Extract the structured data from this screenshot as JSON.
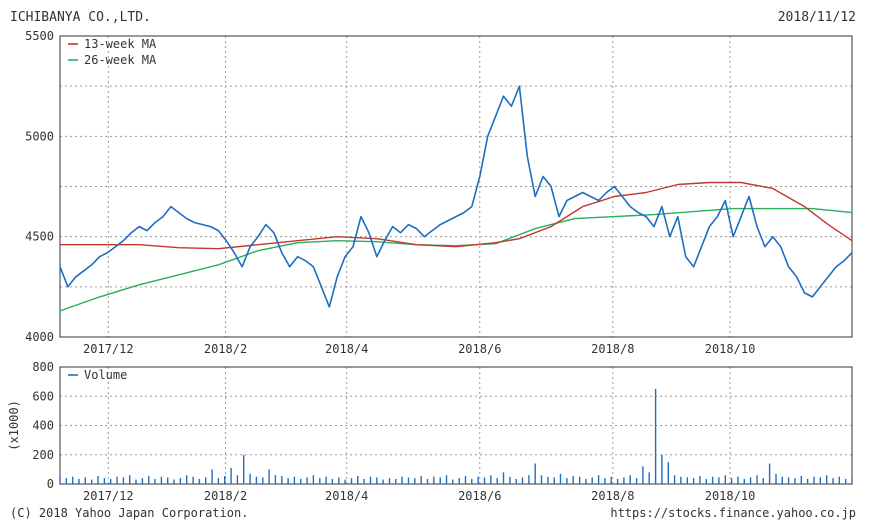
{
  "header": {
    "company": "ICHIBANYA CO.,LTD.",
    "date": "2018/11/12"
  },
  "footer": {
    "copyright": "(C) 2018 Yahoo Japan Corporation.",
    "url": "https://stocks.finance.yahoo.co.jp"
  },
  "colors": {
    "price": "#1f6fc0",
    "ma13": "#c0392b",
    "ma26": "#27ae60",
    "volume": "#1f6fc0",
    "grid": "#9a9a9a",
    "frame": "#333333"
  },
  "chart_data": [
    {
      "type": "line",
      "ylim": [
        4000,
        5500
      ],
      "yticks": [
        "5500",
        "5000",
        "4500",
        "4000"
      ],
      "x_tick_labels": [
        "2017/12",
        "2018/2",
        "2018/4",
        "2018/6",
        "2018/8",
        "2018/10"
      ],
      "grid": true,
      "legend_position": "top-left",
      "x_range": [
        0,
        100
      ],
      "x_ticks": [
        6.1,
        20.9,
        36.2,
        53.0,
        69.8,
        84.6
      ],
      "series": [
        {
          "name": "13-week MA",
          "key": "ma13",
          "x": [
            0,
            5,
            10,
            15,
            20,
            25,
            30,
            35,
            40,
            45,
            50,
            55,
            58,
            62,
            66,
            70,
            74,
            78,
            82,
            86,
            90,
            94,
            97,
            100
          ],
          "y": [
            4460,
            4460,
            4460,
            4445,
            4440,
            4460,
            4480,
            4500,
            4490,
            4460,
            4450,
            4470,
            4490,
            4550,
            4650,
            4700,
            4720,
            4760,
            4770,
            4770,
            4740,
            4650,
            4560,
            4480
          ]
        },
        {
          "name": "26-week MA",
          "key": "ma26",
          "x": [
            0,
            5,
            10,
            15,
            20,
            25,
            30,
            35,
            40,
            45,
            50,
            55,
            60,
            65,
            70,
            75,
            80,
            85,
            90,
            95,
            100
          ],
          "y": [
            4130,
            4200,
            4260,
            4310,
            4360,
            4430,
            4470,
            4480,
            4475,
            4460,
            4455,
            4465,
            4540,
            4590,
            4600,
            4610,
            4625,
            4640,
            4640,
            4640,
            4620
          ]
        },
        {
          "key": "price",
          "x": [
            0,
            1,
            2,
            3,
            4,
            5,
            6,
            7,
            8,
            9,
            10,
            11,
            12,
            13,
            14,
            15,
            16,
            17,
            18,
            19,
            20,
            21,
            22,
            23,
            24,
            25,
            26,
            27,
            28,
            29,
            30,
            31,
            32,
            33,
            34,
            35,
            36,
            37,
            38,
            39,
            40,
            41,
            42,
            43,
            44,
            45,
            46,
            47,
            48,
            49,
            50,
            51,
            52,
            53,
            54,
            55,
            56,
            57,
            58,
            59,
            60,
            61,
            62,
            63,
            64,
            65,
            66,
            67,
            68,
            69,
            70,
            71,
            72,
            73,
            74,
            75,
            76,
            77,
            78,
            79,
            80,
            81,
            82,
            83,
            84,
            85,
            86,
            87,
            88,
            89,
            90,
            91,
            92,
            93,
            94,
            95,
            96,
            97,
            98,
            99,
            100
          ],
          "y": [
            4350,
            4250,
            4300,
            4330,
            4360,
            4400,
            4420,
            4450,
            4480,
            4520,
            4550,
            4530,
            4570,
            4600,
            4650,
            4620,
            4590,
            4570,
            4560,
            4550,
            4530,
            4480,
            4420,
            4350,
            4450,
            4500,
            4560,
            4520,
            4420,
            4350,
            4400,
            4380,
            4350,
            4250,
            4150,
            4300,
            4400,
            4450,
            4600,
            4520,
            4400,
            4480,
            4550,
            4520,
            4560,
            4540,
            4500,
            4530,
            4560,
            4580,
            4600,
            4620,
            4650,
            4800,
            5000,
            5100,
            5200,
            5150,
            5250,
            4900,
            4700,
            4800,
            4750,
            4600,
            4680,
            4700,
            4720,
            4700,
            4680,
            4720,
            4750,
            4700,
            4650,
            4620,
            4600,
            4550,
            4650,
            4500,
            4600,
            4400,
            4350,
            4450,
            4550,
            4600,
            4680,
            4500,
            4600,
            4700,
            4550,
            4450,
            4500,
            4450,
            4350,
            4300,
            4220,
            4200,
            4250,
            4300,
            4350,
            4380,
            4420
          ]
        }
      ]
    },
    {
      "type": "bar",
      "ylim": [
        0,
        800
      ],
      "yticks": [
        "800",
        "600",
        "400",
        "200",
        "0"
      ],
      "ylabel": "(x1000)",
      "x_tick_labels": [
        "2017/12",
        "2018/2",
        "2018/4",
        "2018/6",
        "2018/8",
        "2018/10"
      ],
      "grid": true,
      "legend_position": "top-left",
      "x_range": [
        0,
        100
      ],
      "x_ticks": [
        6.1,
        20.9,
        36.2,
        53.0,
        69.8,
        84.6
      ],
      "series": [
        {
          "name": "Volume",
          "key": "volume",
          "x": [
            0,
            0.8,
            1.6,
            2.4,
            3.2,
            4.0,
            4.8,
            5.6,
            6.4,
            7.2,
            8.0,
            8.8,
            9.6,
            10.4,
            11.2,
            12.0,
            12.8,
            13.6,
            14.4,
            15.2,
            16.0,
            16.8,
            17.6,
            18.4,
            19.2,
            20.0,
            20.8,
            21.6,
            22.4,
            23.2,
            24.0,
            24.8,
            25.6,
            26.4,
            27.2,
            28.0,
            28.8,
            29.6,
            30.4,
            31.2,
            32.0,
            32.8,
            33.6,
            34.4,
            35.2,
            36.0,
            36.8,
            37.6,
            38.4,
            39.2,
            40.0,
            40.8,
            41.6,
            42.4,
            43.2,
            44.0,
            44.8,
            45.6,
            46.4,
            47.2,
            48.0,
            48.8,
            49.6,
            50.4,
            51.2,
            52.0,
            52.8,
            53.6,
            54.4,
            55.2,
            56.0,
            56.8,
            57.6,
            58.4,
            59.2,
            60.0,
            60.8,
            61.6,
            62.4,
            63.2,
            64.0,
            64.8,
            65.6,
            66.4,
            67.2,
            68.0,
            68.8,
            69.6,
            70.4,
            71.2,
            72.0,
            72.8,
            73.6,
            74.4,
            75.2,
            76.0,
            76.8,
            77.6,
            78.4,
            79.2,
            80.0,
            80.8,
            81.6,
            82.4,
            83.2,
            84.0,
            84.8,
            85.6,
            86.4,
            87.2,
            88.0,
            88.8,
            89.6,
            90.4,
            91.2,
            92.0,
            92.8,
            93.6,
            94.4,
            95.2,
            96.0,
            96.8,
            97.6,
            98.4,
            99.2,
            100
          ],
          "values": [
            60,
            40,
            50,
            35,
            45,
            30,
            55,
            40,
            35,
            50,
            45,
            60,
            30,
            40,
            55,
            35,
            50,
            45,
            30,
            40,
            60,
            50,
            35,
            45,
            100,
            40,
            55,
            110,
            60,
            200,
            70,
            50,
            45,
            100,
            60,
            55,
            40,
            50,
            35,
            45,
            60,
            40,
            50,
            35,
            45,
            30,
            40,
            55,
            35,
            50,
            45,
            30,
            40,
            35,
            50,
            45,
            40,
            55,
            35,
            50,
            45,
            60,
            30,
            40,
            55,
            35,
            50,
            45,
            60,
            40,
            80,
            50,
            35,
            45,
            60,
            140,
            60,
            50,
            45,
            70,
            40,
            55,
            50,
            35,
            45,
            60,
            40,
            50,
            35,
            45,
            60,
            40,
            120,
            80,
            650,
            200,
            150,
            60,
            50,
            45,
            40,
            55,
            35,
            50,
            45,
            60,
            40,
            50,
            35,
            45,
            60,
            40,
            140,
            70,
            50,
            45,
            40,
            55,
            35,
            50,
            45,
            60,
            40,
            50,
            35,
            45
          ]
        }
      ]
    }
  ]
}
